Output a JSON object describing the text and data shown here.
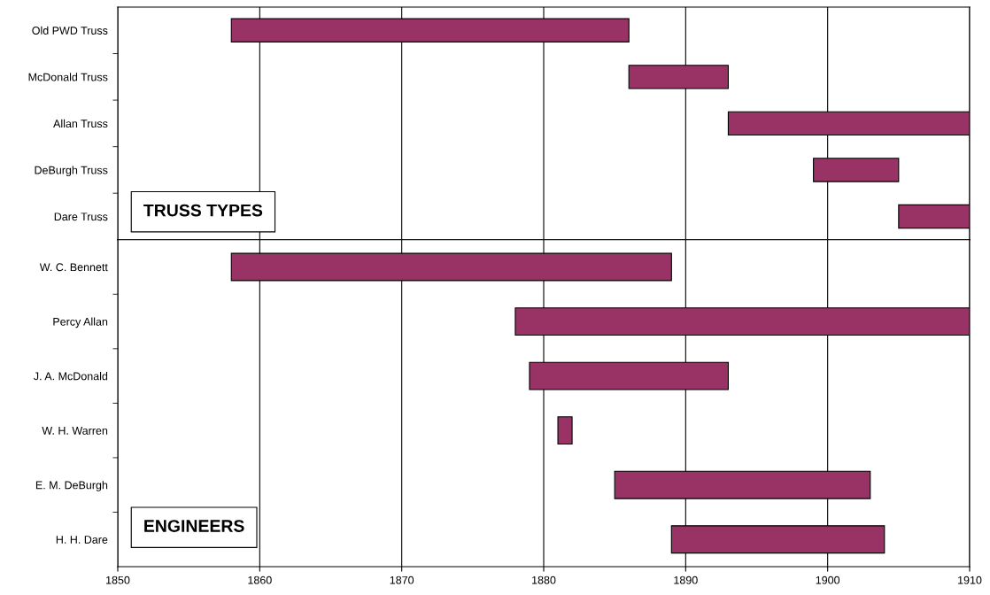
{
  "chart_data": [
    {
      "type": "bar",
      "orientation": "horizontal",
      "categories": [
        "Old PWD Truss",
        "McDonald Truss",
        "Allan Truss",
        "DeBurgh Truss",
        "Dare Truss"
      ],
      "base": [
        1858,
        1886,
        1893,
        1899,
        1905
      ],
      "values": [
        28,
        7,
        17,
        6,
        5
      ],
      "color": "#993366",
      "xlim": [
        1850,
        1910
      ],
      "xticks": [
        1850,
        1860,
        1870,
        1880,
        1890,
        1900,
        1910
      ],
      "grid": "x",
      "tick_labels": "y",
      "annotations": [
        "TRUSS TYPES"
      ]
    },
    {
      "type": "bar",
      "orientation": "horizontal",
      "categories": [
        "W. C. Bennett",
        "Percy Allan",
        "J. A. McDonald",
        "W. H. Warren",
        "E. M. DeBurgh",
        "H. H. Dare"
      ],
      "base": [
        1858,
        1878,
        1879,
        1881,
        1885,
        1889
      ],
      "values": [
        31,
        32,
        14,
        1,
        18,
        15
      ],
      "color": "#993366",
      "xlim": [
        1850,
        1910
      ],
      "xticks": [
        1850,
        1860,
        1870,
        1880,
        1890,
        1900,
        1910
      ],
      "grid": "x",
      "annotations": [
        "ENGINEERS"
      ]
    }
  ]
}
